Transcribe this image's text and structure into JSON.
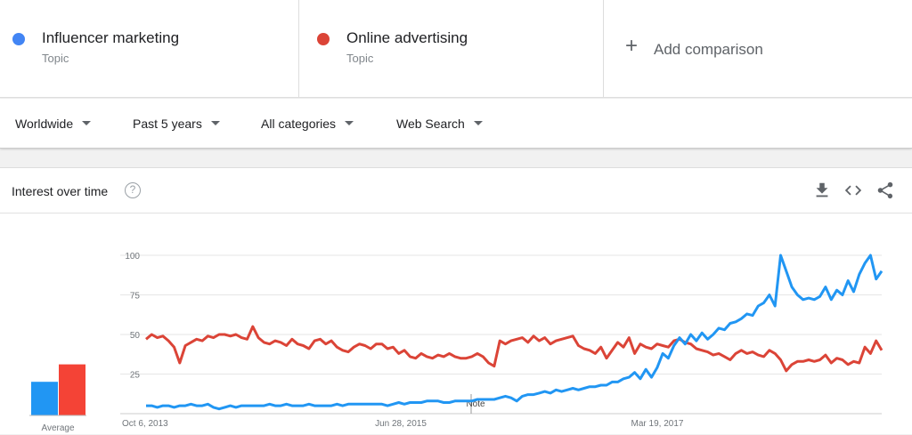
{
  "terms": [
    {
      "name": "Influencer marketing",
      "type": "Topic",
      "color": "#4285f4"
    },
    {
      "name": "Online advertising",
      "type": "Topic",
      "color": "#db4437"
    }
  ],
  "add_comparison": "Add comparison",
  "filters": {
    "region": "Worldwide",
    "time": "Past 5 years",
    "category": "All categories",
    "property": "Web Search"
  },
  "card": {
    "title": "Interest over time",
    "help": "?"
  },
  "icons": [
    "download-icon",
    "embed-icon",
    "share-icon"
  ],
  "chart_data": {
    "type": "line",
    "y_ticks": [
      25,
      50,
      75,
      100
    ],
    "ylim": [
      0,
      100
    ],
    "x_tick_labels": [
      "Oct 6, 2013",
      "Jun 28, 2015",
      "Mar 19, 2017"
    ],
    "note_label": "Note",
    "average_label": "Average",
    "average_values": [
      27,
      41
    ],
    "series": [
      {
        "name": "Influencer marketing",
        "color": "#2196f3",
        "values": [
          5,
          5,
          4,
          5,
          5,
          4,
          5,
          5,
          6,
          5,
          5,
          6,
          4,
          3,
          4,
          5,
          4,
          5,
          5,
          5,
          5,
          5,
          6,
          5,
          5,
          6,
          5,
          5,
          5,
          6,
          5,
          5,
          5,
          5,
          6,
          5,
          6,
          6,
          6,
          6,
          6,
          6,
          6,
          5,
          6,
          7,
          6,
          7,
          7,
          7,
          8,
          8,
          8,
          7,
          7,
          8,
          8,
          8,
          8,
          9,
          9,
          9,
          9,
          10,
          11,
          10,
          8,
          11,
          12,
          12,
          13,
          14,
          13,
          15,
          14,
          15,
          16,
          15,
          16,
          17,
          17,
          18,
          18,
          20,
          20,
          22,
          23,
          26,
          22,
          28,
          23,
          29,
          38,
          35,
          43,
          48,
          44,
          50,
          46,
          51,
          47,
          50,
          54,
          53,
          57,
          58,
          60,
          63,
          62,
          68,
          70,
          75,
          68,
          100,
          90,
          80,
          75,
          72,
          73,
          72,
          74,
          80,
          72,
          78,
          75,
          84,
          77,
          88,
          95,
          100,
          85,
          90
        ]
      },
      {
        "name": "Online advertising",
        "color": "#db4437",
        "values": [
          47,
          50,
          48,
          49,
          46,
          42,
          32,
          43,
          45,
          47,
          46,
          49,
          48,
          50,
          50,
          49,
          50,
          48,
          47,
          55,
          48,
          45,
          44,
          46,
          45,
          43,
          47,
          44,
          43,
          41,
          46,
          47,
          44,
          46,
          42,
          40,
          39,
          42,
          44,
          43,
          41,
          44,
          44,
          41,
          42,
          38,
          40,
          36,
          35,
          38,
          36,
          35,
          37,
          36,
          38,
          36,
          35,
          35,
          36,
          38,
          36,
          32,
          30,
          46,
          44,
          46,
          47,
          48,
          45,
          49,
          46,
          48,
          44,
          46,
          47,
          48,
          49,
          43,
          41,
          40,
          38,
          42,
          35,
          40,
          45,
          42,
          48,
          38,
          44,
          42,
          41,
          44,
          43,
          42,
          46,
          47,
          45,
          44,
          41,
          40,
          39,
          37,
          38,
          36,
          34,
          38,
          40,
          38,
          39,
          37,
          36,
          40,
          38,
          34,
          27,
          31,
          33,
          33,
          34,
          33,
          34,
          37,
          32,
          35,
          34,
          31,
          33,
          32,
          42,
          38,
          46,
          40
        ]
      }
    ]
  }
}
